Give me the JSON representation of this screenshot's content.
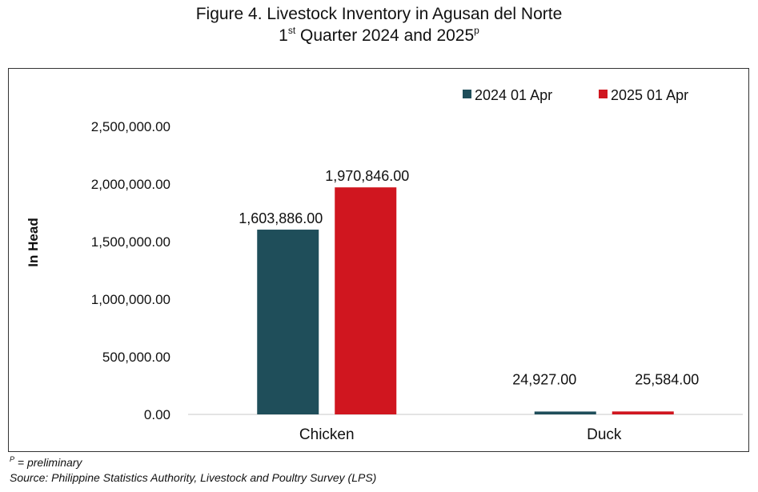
{
  "title": {
    "line1": "Figure 4. Livestock Inventory in Agusan del Norte",
    "line2_pre": "1",
    "line2_sup": "st",
    "line2_mid": " Quarter 2024 and 2025",
    "line2_sup2": "p"
  },
  "footer": {
    "note_sup": "P",
    "note_text": " = preliminary",
    "source": "Source: Philippine Statistics Authority, Livestock and Poultry Survey (LPS)"
  },
  "chart_data": {
    "type": "bar",
    "title": "Figure 4. Livestock Inventory in Agusan del Norte 1st Quarter 2024 and 2025p",
    "ylabel": "In Head",
    "xlabel": "",
    "categories": [
      "Chicken",
      "Duck"
    ],
    "series": [
      {
        "name": "2024 01 Apr",
        "color": "#1f4e5a",
        "values": [
          1603886,
          24927
        ],
        "labels": [
          "1,603,886.00",
          "24,927.00"
        ]
      },
      {
        "name": "2025 01 Apr",
        "color": "#d0161f",
        "values": [
          1970846,
          25584
        ],
        "labels": [
          "1,970,846.00",
          "25,584.00"
        ]
      }
    ],
    "ylim": [
      0,
      2500000
    ],
    "yticks": [
      0,
      500000,
      1000000,
      1500000,
      2000000,
      2500000
    ],
    "ytick_labels": [
      "0.00",
      "500,000.00",
      "1,000,000.00",
      "1,500,000.00",
      "2,000,000.00",
      "2,500,000.00"
    ],
    "grid": false,
    "legend_position": "top-right"
  }
}
